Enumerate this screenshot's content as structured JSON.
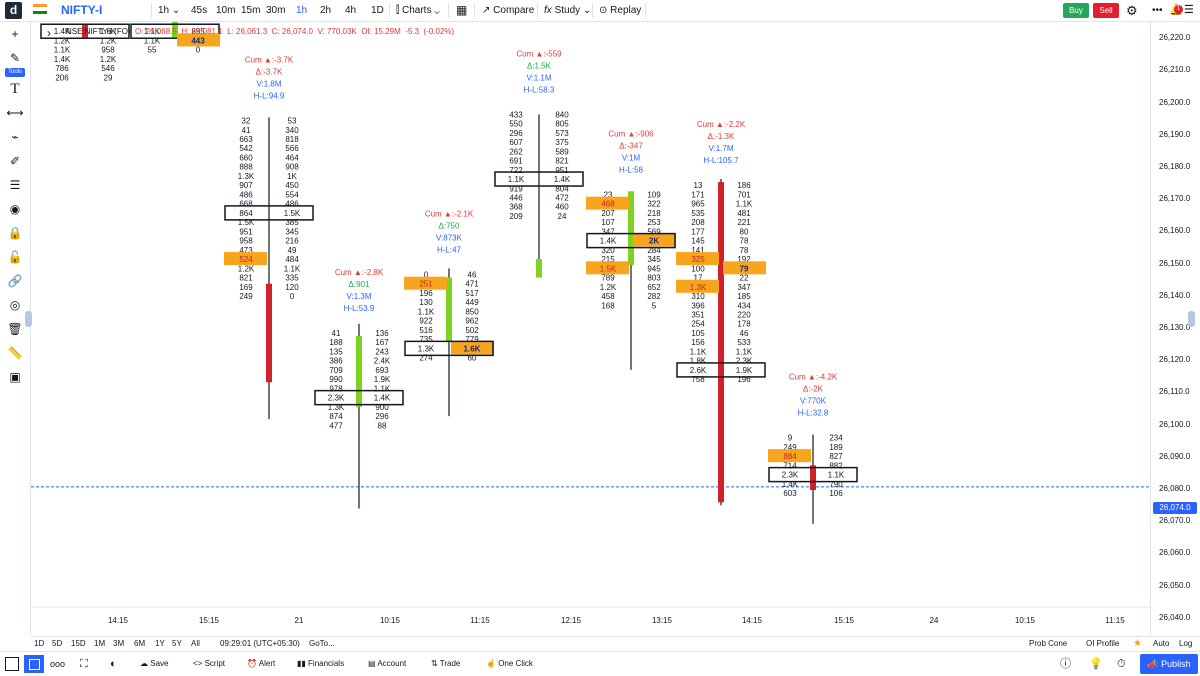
{
  "header": {
    "logo": "d",
    "symbol": "NIFTY-I",
    "interval": "1h",
    "intervals": [
      "45s",
      "10m",
      "15m",
      "30m",
      "1h",
      "2h",
      "4h",
      "1D"
    ],
    "charts_label": "Charts",
    "compare_label": "Compare",
    "study_label": "Study",
    "replay_label": "Replay",
    "buy_label": "Buy",
    "sell_label": "Sell",
    "notif_count": "1"
  },
  "toolbar": {
    "tools_label": "Tools"
  },
  "legend": {
    "symbol": "NSE:NIFTY-I (FO)",
    "open": "O: 26,068.5",
    "high": "H: 26,081.1",
    "low": "L: 26,061.3",
    "close": "C: 26,074.0",
    "volume": "V: 770.03K",
    "oi": "OI: 15.29M",
    "change": "-5.3",
    "change_pct": "(-0.02%)"
  },
  "price_axis": {
    "labels": [
      "26,220.0",
      "26,210.0",
      "26,200.0",
      "26,190.0",
      "26,180.0",
      "26,170.0",
      "26,160.0",
      "26,150.0",
      "26,140.0",
      "26,130.0",
      "26,120.0",
      "26,110.0",
      "26,100.0",
      "26,090.0",
      "26,080.0",
      "26,070.0",
      "26,060.0",
      "26,050.0",
      "26,040.0"
    ],
    "current_price": "26,074.0"
  },
  "time_axis": [
    "14:15",
    "15:15",
    "21",
    "10:15",
    "11:15",
    "12:15",
    "13:15",
    "14:15",
    "15:15",
    "24",
    "10:15",
    "11:15"
  ],
  "chart_data": {
    "type": "footprint",
    "y_range": [
      26035,
      26225
    ],
    "current_price": 26074.0,
    "candles": [
      {
        "x_label": "9:15",
        "cx": 85,
        "wick_low": 26225,
        "wick_high": 26225,
        "body": {
          "from": 26224,
          "to": 26220,
          "color": "red"
        },
        "stats": [],
        "rows": [
          {
            "p": 26222,
            "bid": "1.4K",
            "ask": "1.6K",
            "box": true
          },
          {
            "p": 26219,
            "bid": "1.2K",
            "ask": "1.2K"
          },
          {
            "p": 26216,
            "bid": "1.1K",
            "ask": "958"
          },
          {
            "p": 26213,
            "bid": "1.4K",
            "ask": "1.2K"
          },
          {
            "p": 26210,
            "bid": "786",
            "ask": "546"
          },
          {
            "p": 26207,
            "bid": "206",
            "ask": "29"
          }
        ]
      },
      {
        "x_label": "10:15",
        "cx": 175,
        "wick_low": 26222,
        "wick_high": 26225,
        "body": {
          "from": 26225,
          "to": 26220,
          "color": "green"
        },
        "stats": [],
        "rows": [
          {
            "p": 26222,
            "bid": "1.1K",
            "ask": "895",
            "box": true
          },
          {
            "p": 26219,
            "bid": "1.1K",
            "ask": "443",
            "hiask": true
          },
          {
            "p": 26216,
            "bid": "55",
            "ask": "0"
          }
        ]
      },
      {
        "x_label": "14:15",
        "cx": 269,
        "wick_low": 26096,
        "wick_high": 26194,
        "body": {
          "from": 26140,
          "to": 26108,
          "color": "red"
        },
        "stats": [
          "Cum ▲:-3.7K",
          "Δ:-3.7K",
          "V:1.8M",
          "H-L:94.9"
        ],
        "rows": [
          {
            "p": 26193,
            "bid": "32",
            "ask": "53"
          },
          {
            "p": 26190,
            "bid": "41",
            "ask": "340"
          },
          {
            "p": 26187,
            "bid": "663",
            "ask": "818"
          },
          {
            "p": 26184,
            "bid": "542",
            "ask": "566"
          },
          {
            "p": 26181,
            "bid": "660",
            "ask": "464"
          },
          {
            "p": 26178,
            "bid": "888",
            "ask": "908"
          },
          {
            "p": 26175,
            "bid": "1.3K",
            "ask": "1K"
          },
          {
            "p": 26172,
            "bid": "907",
            "ask": "450"
          },
          {
            "p": 26169,
            "bid": "486",
            "ask": "554"
          },
          {
            "p": 26166,
            "bid": "668",
            "ask": "486"
          },
          {
            "p": 26163,
            "bid": "864",
            "ask": "1.5K",
            "box": true
          },
          {
            "p": 26160,
            "bid": "1.5K",
            "ask": "385"
          },
          {
            "p": 26157,
            "bid": "951",
            "ask": "345"
          },
          {
            "p": 26154,
            "bid": "958",
            "ask": "216"
          },
          {
            "p": 26151,
            "bid": "473",
            "ask": "49"
          },
          {
            "p": 26148,
            "bid": "524",
            "ask": "484",
            "hibid": true
          },
          {
            "p": 26145,
            "bid": "1.2K",
            "ask": "1.1K"
          },
          {
            "p": 26142,
            "bid": "821",
            "ask": "335"
          },
          {
            "p": 26139,
            "bid": "169",
            "ask": "120"
          },
          {
            "p": 26136,
            "bid": "249",
            "ask": "0"
          }
        ]
      },
      {
        "x_label": "15:15",
        "cx": 359,
        "wick_low": 26067,
        "wick_high": 26127,
        "body": {
          "from": 26123,
          "to": 26100,
          "color": "green"
        },
        "stats": [
          "Cum ▲:-2.8K",
          "Δ:901",
          "V:1.3M",
          "H-L:53.9"
        ],
        "rows": [
          {
            "p": 26124,
            "bid": "41",
            "ask": "136"
          },
          {
            "p": 26121,
            "bid": "188",
            "ask": "167"
          },
          {
            "p": 26118,
            "bid": "135",
            "ask": "243"
          },
          {
            "p": 26115,
            "bid": "386",
            "ask": "2.4K"
          },
          {
            "p": 26112,
            "bid": "709",
            "ask": "693"
          },
          {
            "p": 26109,
            "bid": "990",
            "ask": "1.9K"
          },
          {
            "p": 26106,
            "bid": "978",
            "ask": "1.1K"
          },
          {
            "p": 26103,
            "bid": "2.3K",
            "ask": "1.4K",
            "box": true
          },
          {
            "p": 26100,
            "bid": "1.3K",
            "ask": "900"
          },
          {
            "p": 26097,
            "bid": "874",
            "ask": "296"
          },
          {
            "p": 26094,
            "bid": "477",
            "ask": "88"
          }
        ]
      },
      {
        "x_label": "10:15",
        "cx": 449,
        "wick_low": 26097,
        "wick_high": 26145,
        "body": {
          "from": 26142,
          "to": 26121,
          "color": "green"
        },
        "stats": [
          "Cum ▲:-2.1K",
          "Δ:750",
          "V:873K",
          "H-L:47"
        ],
        "rows": [
          {
            "p": 26143,
            "bid": "0",
            "ask": "46"
          },
          {
            "p": 26140,
            "bid": "251",
            "ask": "471",
            "hibid": true
          },
          {
            "p": 26137,
            "bid": "196",
            "ask": "517"
          },
          {
            "p": 26134,
            "bid": "130",
            "ask": "449"
          },
          {
            "p": 26131,
            "bid": "1.1K",
            "ask": "850"
          },
          {
            "p": 26128,
            "bid": "922",
            "ask": "962"
          },
          {
            "p": 26125,
            "bid": "516",
            "ask": "502"
          },
          {
            "p": 26122,
            "bid": "735",
            "ask": "779"
          },
          {
            "p": 26119,
            "bid": "1.3K",
            "ask": "1.6K",
            "box": true,
            "hiask": true
          },
          {
            "p": 26116,
            "bid": "274",
            "ask": "60"
          }
        ]
      },
      {
        "x_label": "11:15",
        "cx": 539,
        "wick_low": 26143,
        "wick_high": 26195,
        "body": {
          "from": 26148,
          "to": 26142,
          "color": "green"
        },
        "stats": [
          "Cum ▲:-559",
          "Δ:1.5K",
          "V:1.1M",
          "H-L:58.3"
        ],
        "rows": [
          {
            "p": 26195,
            "bid": "433",
            "ask": "840"
          },
          {
            "p": 26192,
            "bid": "550",
            "ask": "805"
          },
          {
            "p": 26189,
            "bid": "296",
            "ask": "573"
          },
          {
            "p": 26186,
            "bid": "607",
            "ask": "375"
          },
          {
            "p": 26183,
            "bid": "262",
            "ask": "589"
          },
          {
            "p": 26180,
            "bid": "691",
            "ask": "821"
          },
          {
            "p": 26177,
            "bid": "722",
            "ask": "951"
          },
          {
            "p": 26174,
            "bid": "1.1K",
            "ask": "1.4K",
            "box": true
          },
          {
            "p": 26171,
            "bid": "919",
            "ask": "804"
          },
          {
            "p": 26168,
            "bid": "446",
            "ask": "472"
          },
          {
            "p": 26165,
            "bid": "368",
            "ask": "460"
          },
          {
            "p": 26162,
            "bid": "209",
            "ask": "24"
          }
        ]
      },
      {
        "x_label": "12:15",
        "cx": 631,
        "wick_low": 26112,
        "wick_high": 26170,
        "body": {
          "from": 26170,
          "to": 26146,
          "color": "green"
        },
        "stats": [
          "Cum ▲:-906",
          "Δ:-347",
          "V:1M",
          "H-L:58"
        ],
        "rows": [
          {
            "p": 26169,
            "bid": "23",
            "ask": "109"
          },
          {
            "p": 26166,
            "bid": "468",
            "ask": "322",
            "hibid": true
          },
          {
            "p": 26163,
            "bid": "207",
            "ask": "218"
          },
          {
            "p": 26160,
            "bid": "107",
            "ask": "253"
          },
          {
            "p": 26157,
            "bid": "347",
            "ask": "569"
          },
          {
            "p": 26154,
            "bid": "1.4K",
            "ask": "2K",
            "box": true,
            "hiask": true
          },
          {
            "p": 26151,
            "bid": "320",
            "ask": "284"
          },
          {
            "p": 26148,
            "bid": "215",
            "ask": "345"
          },
          {
            "p": 26145,
            "bid": "1.5K",
            "ask": "945",
            "hibid": true
          },
          {
            "p": 26142,
            "bid": "789",
            "ask": "803"
          },
          {
            "p": 26139,
            "bid": "1.2K",
            "ask": "652"
          },
          {
            "p": 26136,
            "bid": "458",
            "ask": "282"
          },
          {
            "p": 26133,
            "bid": "168",
            "ask": "5"
          }
        ]
      },
      {
        "x_label": "13:15",
        "cx": 721,
        "wick_low": 26068,
        "wick_high": 26174,
        "body": {
          "from": 26173,
          "to": 26069,
          "color": "red"
        },
        "stats": [
          "Cum ▲:-2.2K",
          "Δ:-1.3K",
          "V:1.7M",
          "H-L:105.7"
        ],
        "rows": [
          {
            "p": 26172,
            "bid": "13",
            "ask": "186"
          },
          {
            "p": 26169,
            "bid": "171",
            "ask": "701"
          },
          {
            "p": 26166,
            "bid": "965",
            "ask": "1.1K"
          },
          {
            "p": 26163,
            "bid": "535",
            "ask": "481"
          },
          {
            "p": 26160,
            "bid": "208",
            "ask": "221"
          },
          {
            "p": 26157,
            "bid": "177",
            "ask": "80"
          },
          {
            "p": 26154,
            "bid": "145",
            "ask": "78"
          },
          {
            "p": 26151,
            "bid": "141",
            "ask": "78"
          },
          {
            "p": 26148,
            "bid": "325",
            "ask": "192",
            "hibid": true
          },
          {
            "p": 26145,
            "bid": "100",
            "ask": "79",
            "hiask": true
          },
          {
            "p": 26142,
            "bid": "17",
            "ask": "22"
          },
          {
            "p": 26139,
            "bid": "1.3K",
            "ask": "347",
            "hibid": true
          },
          {
            "p": 26136,
            "bid": "310",
            "ask": "185"
          },
          {
            "p": 26133,
            "bid": "396",
            "ask": "434"
          },
          {
            "p": 26130,
            "bid": "351",
            "ask": "220"
          },
          {
            "p": 26127,
            "bid": "254",
            "ask": "178"
          },
          {
            "p": 26124,
            "bid": "105",
            "ask": "46"
          },
          {
            "p": 26121,
            "bid": "156",
            "ask": "533"
          },
          {
            "p": 26118,
            "bid": "1.1K",
            "ask": "1.1K"
          },
          {
            "p": 26115,
            "bid": "1.8K",
            "ask": "2.3K"
          },
          {
            "p": 26112,
            "bid": "2.6K",
            "ask": "1.9K",
            "box": true
          },
          {
            "p": 26109,
            "bid": "758",
            "ask": "196"
          }
        ]
      },
      {
        "x_label": "14:15",
        "cx": 813,
        "wick_low": 26062,
        "wick_high": 26091,
        "body": {
          "from": 26081,
          "to": 26073,
          "color": "red"
        },
        "stats": [
          "Cum ▲:-4.2K",
          "Δ:-2K",
          "V:770K",
          "H-L:32.8"
        ],
        "rows": [
          {
            "p": 26090,
            "bid": "9",
            "ask": "234"
          },
          {
            "p": 26087,
            "bid": "249",
            "ask": "189"
          },
          {
            "p": 26084,
            "bid": "884",
            "ask": "827",
            "hibid": true
          },
          {
            "p": 26081,
            "bid": "714",
            "ask": "882"
          },
          {
            "p": 26078,
            "bid": "2.3K",
            "ask": "1.1K",
            "box": true
          },
          {
            "p": 26075,
            "bid": "1.4K",
            "ask": "790"
          },
          {
            "p": 26072,
            "bid": "603",
            "ask": "106"
          }
        ]
      }
    ]
  },
  "range_bar": {
    "ranges": [
      "1D",
      "5D",
      "15D",
      "1M",
      "3M",
      "6M",
      "1Y",
      "5Y",
      "All"
    ],
    "clock": "09:29:01 (UTC+05:30)",
    "goto": "GoTo...",
    "prob_cone": "Prob Cone",
    "oi_profile": "OI Profile",
    "auto": "Auto",
    "log": "Log"
  },
  "bottom_bar": {
    "save": "Save",
    "script": "Script",
    "alert": "Alert",
    "financials": "Financials",
    "account": "Account",
    "trade": "Trade",
    "one_click": "One Click",
    "publish": "Publish"
  },
  "colors": {
    "red": "#d0202a",
    "green": "#7ed321",
    "orange": "#f7a51c",
    "blue": "#2962ff"
  }
}
